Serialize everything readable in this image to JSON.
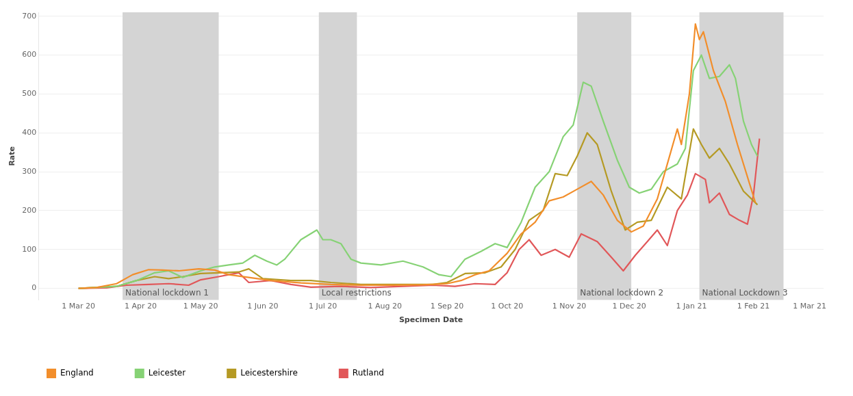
{
  "chart_data": {
    "type": "line",
    "xlabel": "Specimen Date",
    "ylabel": "Rate",
    "xlim": [
      "2020-02-10",
      "2021-03-08"
    ],
    "ylim": [
      -30,
      710
    ],
    "xticks": [
      {
        "value": "2020-03-01",
        "label": "1 Mar 20"
      },
      {
        "value": "2020-04-01",
        "label": "1 Apr 20"
      },
      {
        "value": "2020-05-01",
        "label": "1 May 20"
      },
      {
        "value": "2020-06-01",
        "label": "1 Jun 20"
      },
      {
        "value": "2020-07-01",
        "label": "1 Jul 20"
      },
      {
        "value": "2020-08-01",
        "label": "1 Aug 20"
      },
      {
        "value": "2020-09-01",
        "label": "1 Sep 20"
      },
      {
        "value": "2020-10-01",
        "label": "1 Oct 20"
      },
      {
        "value": "2020-11-01",
        "label": "1 Nov 20"
      },
      {
        "value": "2020-12-01",
        "label": "1 Dec 20"
      },
      {
        "value": "2021-01-01",
        "label": "1 Jan 21"
      },
      {
        "value": "2021-02-01",
        "label": "1 Feb 21"
      },
      {
        "value": "2021-03-01",
        "label": "1 Mar 21"
      }
    ],
    "yticks": [
      0,
      100,
      200,
      300,
      400,
      500,
      600,
      700
    ],
    "grid": "y",
    "legend": "bottom left",
    "marker": "none",
    "line_style": "solid",
    "bands": [
      {
        "axis": "x",
        "from": "2020-03-23",
        "to": "2020-05-10",
        "label": "National lockdown 1",
        "color": "#d4d4d4"
      },
      {
        "axis": "x",
        "from": "2020-06-29",
        "to": "2020-07-18",
        "label": "Local restrictions",
        "color": "#d4d4d4"
      },
      {
        "axis": "x",
        "from": "2020-11-05",
        "to": "2020-12-02",
        "label": "National lockdown 2",
        "color": "#d4d4d4"
      },
      {
        "axis": "x",
        "from": "2021-01-05",
        "to": "2021-02-16",
        "label": "National Lockdown 3",
        "color": "#d4d4d4"
      }
    ],
    "series": [
      {
        "name": "England",
        "color": "#f28e2b",
        "x": [
          "2020-03-01",
          "2020-03-10",
          "2020-03-20",
          "2020-03-28",
          "2020-04-05",
          "2020-04-12",
          "2020-04-20",
          "2020-04-30",
          "2020-05-08",
          "2020-05-15",
          "2020-05-25",
          "2020-06-05",
          "2020-06-20",
          "2020-07-05",
          "2020-07-20",
          "2020-08-05",
          "2020-08-20",
          "2020-09-01",
          "2020-09-08",
          "2020-09-15",
          "2020-09-22",
          "2020-10-01",
          "2020-10-08",
          "2020-10-15",
          "2020-10-22",
          "2020-10-29",
          "2020-11-05",
          "2020-11-12",
          "2020-11-18",
          "2020-11-25",
          "2020-12-02",
          "2020-12-08",
          "2020-12-15",
          "2020-12-20",
          "2020-12-25",
          "2020-12-27",
          "2020-12-31",
          "2021-01-03",
          "2021-01-05",
          "2021-01-07",
          "2021-01-12",
          "2021-01-18",
          "2021-01-24",
          "2021-01-30",
          "2021-02-02"
        ],
        "values": [
          0,
          2,
          12,
          35,
          48,
          47,
          45,
          50,
          47,
          35,
          28,
          20,
          14,
          10,
          8,
          8,
          9,
          12,
          20,
          35,
          45,
          90,
          140,
          170,
          225,
          235,
          255,
          275,
          240,
          175,
          145,
          160,
          230,
          320,
          410,
          370,
          500,
          680,
          640,
          660,
          560,
          480,
          370,
          270,
          220
        ]
      },
      {
        "name": "Leicester",
        "color": "#86d275",
        "x": [
          "2020-03-01",
          "2020-03-20",
          "2020-03-30",
          "2020-04-08",
          "2020-04-15",
          "2020-04-22",
          "2020-05-01",
          "2020-05-08",
          "2020-05-15",
          "2020-05-22",
          "2020-05-28",
          "2020-06-03",
          "2020-06-08",
          "2020-06-12",
          "2020-06-20",
          "2020-06-28",
          "2020-07-01",
          "2020-07-05",
          "2020-07-10",
          "2020-07-15",
          "2020-07-20",
          "2020-07-30",
          "2020-08-10",
          "2020-08-20",
          "2020-08-28",
          "2020-09-03",
          "2020-09-10",
          "2020-09-18",
          "2020-09-25",
          "2020-10-01",
          "2020-10-08",
          "2020-10-15",
          "2020-10-22",
          "2020-10-29",
          "2020-11-03",
          "2020-11-08",
          "2020-11-12",
          "2020-11-18",
          "2020-11-25",
          "2020-12-01",
          "2020-12-06",
          "2020-12-12",
          "2020-12-18",
          "2020-12-25",
          "2020-12-29",
          "2021-01-02",
          "2021-01-06",
          "2021-01-10",
          "2021-01-15",
          "2021-01-20",
          "2021-01-23",
          "2021-01-27",
          "2021-01-31",
          "2021-02-03"
        ],
        "values": [
          0,
          5,
          20,
          40,
          45,
          28,
          45,
          55,
          60,
          65,
          85,
          70,
          60,
          75,
          125,
          150,
          125,
          125,
          115,
          75,
          65,
          60,
          70,
          55,
          35,
          30,
          75,
          95,
          115,
          105,
          170,
          260,
          300,
          390,
          420,
          530,
          520,
          430,
          330,
          260,
          245,
          255,
          300,
          320,
          360,
          560,
          600,
          540,
          545,
          575,
          540,
          430,
          370,
          340
        ]
      },
      {
        "name": "Leicestershire",
        "color": "#b59a24",
        "x": [
          "2020-03-01",
          "2020-03-20",
          "2020-03-30",
          "2020-04-08",
          "2020-04-15",
          "2020-04-22",
          "2020-05-01",
          "2020-05-10",
          "2020-05-20",
          "2020-05-25",
          "2020-06-01",
          "2020-06-15",
          "2020-06-25",
          "2020-07-05",
          "2020-07-20",
          "2020-08-05",
          "2020-08-25",
          "2020-09-01",
          "2020-09-10",
          "2020-09-20",
          "2020-09-28",
          "2020-10-05",
          "2020-10-12",
          "2020-10-19",
          "2020-10-25",
          "2020-10-31",
          "2020-11-05",
          "2020-11-10",
          "2020-11-15",
          "2020-11-22",
          "2020-11-29",
          "2020-12-05",
          "2020-12-12",
          "2020-12-20",
          "2020-12-27",
          "2021-01-02",
          "2021-01-06",
          "2021-01-10",
          "2021-01-15",
          "2021-01-20",
          "2021-01-27",
          "2021-02-03"
        ],
        "values": [
          0,
          5,
          20,
          30,
          25,
          30,
          38,
          40,
          42,
          50,
          25,
          20,
          20,
          15,
          10,
          10,
          10,
          15,
          38,
          40,
          55,
          100,
          175,
          200,
          295,
          290,
          340,
          400,
          370,
          250,
          150,
          170,
          175,
          260,
          230,
          410,
          370,
          335,
          360,
          320,
          250,
          215
        ]
      },
      {
        "name": "Rutland",
        "color": "#e15759",
        "x": [
          "2020-03-01",
          "2020-03-15",
          "2020-03-25",
          "2020-04-05",
          "2020-04-15",
          "2020-04-25",
          "2020-05-01",
          "2020-05-10",
          "2020-05-15",
          "2020-05-20",
          "2020-05-25",
          "2020-06-05",
          "2020-06-15",
          "2020-06-25",
          "2020-07-10",
          "2020-07-25",
          "2020-08-10",
          "2020-08-25",
          "2020-09-05",
          "2020-09-15",
          "2020-09-25",
          "2020-10-01",
          "2020-10-07",
          "2020-10-12",
          "2020-10-18",
          "2020-10-25",
          "2020-11-01",
          "2020-11-07",
          "2020-11-15",
          "2020-11-22",
          "2020-11-28",
          "2020-12-04",
          "2020-12-10",
          "2020-12-15",
          "2020-12-20",
          "2020-12-25",
          "2020-12-30",
          "2021-01-03",
          "2021-01-08",
          "2021-01-10",
          "2021-01-15",
          "2021-01-20",
          "2021-01-25",
          "2021-01-29",
          "2021-02-01",
          "2021-02-04"
        ],
        "values": [
          0,
          1,
          8,
          10,
          12,
          8,
          22,
          30,
          35,
          40,
          15,
          20,
          10,
          3,
          5,
          2,
          5,
          8,
          5,
          12,
          10,
          40,
          100,
          125,
          85,
          100,
          80,
          140,
          120,
          80,
          45,
          85,
          120,
          150,
          110,
          200,
          240,
          295,
          280,
          220,
          245,
          190,
          175,
          165,
          240,
          385
        ]
      }
    ]
  }
}
